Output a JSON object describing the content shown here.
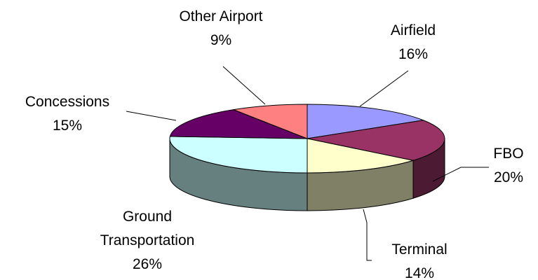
{
  "chart_data": {
    "type": "pie",
    "style": "3d",
    "title": "",
    "legend": "none",
    "categories": [
      "Airfield",
      "FBO",
      "Terminal",
      "Ground Transportation",
      "Concessions",
      "Other Airport"
    ],
    "values": [
      16,
      20,
      14,
      26,
      15,
      9
    ],
    "value_labels": [
      "16%",
      "20%",
      "14%",
      "26%",
      "15%",
      "9%"
    ],
    "label_lines": [
      [
        "Airfield"
      ],
      [
        "FBO"
      ],
      [
        "Terminal"
      ],
      [
        "Ground",
        "Transportation"
      ],
      [
        "Concessions"
      ],
      [
        "Other Airport"
      ]
    ],
    "colors": [
      "#9999ff",
      "#993366",
      "#ffffcc",
      "#ccffff",
      "#660066",
      "#ff8080"
    ]
  }
}
